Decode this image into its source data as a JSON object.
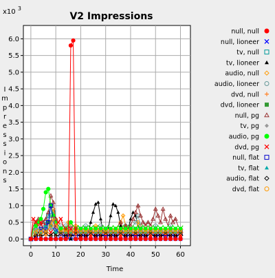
{
  "chart_data": {
    "type": "line",
    "title": "V2 Impressions",
    "xlabel": "Time",
    "ylabel": "Impressions",
    "ylabel_letters": [
      "I",
      "m",
      "p",
      "r",
      "e",
      "s",
      "s",
      "i",
      "o",
      "n",
      "s"
    ],
    "y_multiplier": "x10",
    "y_multiplier_exp": "3",
    "xlim": [
      -3,
      64
    ],
    "ylim": [
      -0.2,
      6.4
    ],
    "xticks": [
      0,
      10,
      20,
      30,
      40,
      50,
      60
    ],
    "yticks": [
      0.0,
      0.5,
      1.0,
      1.5,
      2.0,
      2.5,
      3.0,
      3.5,
      4.0,
      4.5,
      5.0,
      5.5,
      6.0
    ],
    "ytick_labels": [
      "0.0",
      "0.5",
      "1.0",
      "1.5",
      "2.0",
      "2.5",
      "3.0",
      "3.5",
      "4.0",
      "4.5",
      "5.0",
      "5.5",
      "6.0"
    ],
    "grid": true,
    "legend_position": "right",
    "x": [
      0,
      1,
      2,
      3,
      4,
      5,
      6,
      7,
      8,
      9,
      10,
      11,
      12,
      13,
      14,
      15,
      16,
      17,
      18,
      19,
      20,
      21,
      22,
      23,
      24,
      25,
      26,
      27,
      28,
      29,
      30,
      31,
      32,
      33,
      34,
      35,
      36,
      37,
      38,
      39,
      40,
      41,
      42,
      43,
      44,
      45,
      46,
      47,
      48,
      49,
      50,
      51,
      52,
      53,
      54,
      55,
      56,
      57,
      58,
      59,
      60,
      61
    ],
    "series": [
      {
        "name": "null, null",
        "color": "#ff0000",
        "marker": "circle-filled",
        "values": [
          0,
          0,
          0,
          0,
          0,
          0,
          0,
          0,
          0,
          0,
          0,
          0,
          0,
          0,
          0,
          0,
          5.8,
          5.95,
          0,
          0,
          0,
          0,
          0,
          0,
          0,
          0,
          0,
          0,
          0,
          0,
          0,
          0,
          0,
          0,
          0,
          0,
          0,
          0,
          0,
          0,
          0,
          0,
          0,
          0,
          0,
          0,
          0,
          0,
          0,
          0,
          0,
          0,
          0,
          0,
          0,
          0,
          0,
          0,
          0,
          0,
          0,
          0
        ]
      },
      {
        "name": "null, lioneer",
        "color": "#0000ff",
        "marker": "x",
        "values": [
          0,
          0,
          0,
          0,
          0,
          0,
          0,
          0,
          0,
          0,
          0,
          0,
          0,
          0,
          0,
          0,
          0,
          0,
          0,
          0,
          0,
          0,
          0,
          0,
          0,
          0,
          0,
          0,
          0,
          0,
          0,
          0,
          0,
          0,
          0,
          0,
          0,
          0,
          0,
          0,
          0,
          0,
          0,
          0,
          0,
          0,
          0,
          0,
          0,
          0,
          0,
          0,
          0,
          0,
          0,
          0,
          0,
          0,
          0,
          0,
          0,
          0
        ]
      },
      {
        "name": "tv, null",
        "color": "#009999",
        "marker": "square-open",
        "values": [
          0,
          0.1,
          0.2,
          0.3,
          0.2,
          0.3,
          0.5,
          0.7,
          1.0,
          0.8,
          0.3,
          0.2,
          0.3,
          0.2,
          0.2,
          0.3,
          0.2,
          0.3,
          0.2,
          0.2,
          0.3,
          0.2,
          0.2,
          0.3,
          0.2,
          0.2,
          0.3,
          0.2,
          0.2,
          0.2,
          0.3,
          0.2,
          0.2,
          0.3,
          0.2,
          0.2,
          0.2,
          0.3,
          0.2,
          0.2,
          0.3,
          0.2,
          0.3,
          0.4,
          0.3,
          0.2,
          0.2,
          0.3,
          0.2,
          0.2,
          0.2,
          0.3,
          0.2,
          0.2,
          0.2,
          0.3,
          0.2,
          0.2,
          0.2,
          0.3,
          0.2,
          0.2
        ]
      },
      {
        "name": "tv, lioneer",
        "color": "#000000",
        "marker": "triangle-filled",
        "values": [
          0,
          0,
          0,
          0,
          0,
          0,
          0,
          0,
          0,
          0,
          0,
          0,
          0,
          0,
          0,
          0,
          0,
          0,
          0,
          0,
          0.1,
          0.1,
          0.1,
          0.2,
          0.5,
          0.8,
          1.05,
          1.1,
          0.6,
          0.2,
          0.2,
          0.3,
          0.7,
          1.05,
          1.0,
          0.8,
          0.4,
          0.2,
          0.1,
          0.3,
          0.6,
          0.8,
          0.7,
          0.4,
          0.2,
          0.1,
          0.1,
          0.2,
          0.1,
          0.1,
          0.2,
          0.1,
          0.1,
          0.1,
          0.2,
          0.1,
          0.1,
          0.1,
          0.1,
          0.2,
          0.1,
          0.1
        ]
      },
      {
        "name": "audio, null",
        "color": "#ff9900",
        "marker": "diamond-open",
        "values": [
          0,
          0.1,
          0.2,
          0.1,
          0.2,
          0.3,
          0.2,
          0.3,
          0.5,
          0.9,
          0.6,
          0.4,
          0.3,
          0.2,
          0.3,
          0.5,
          0.4,
          0.3,
          0.4,
          0.3,
          0.2,
          0.3,
          0.2,
          0.3,
          0.2,
          0.3,
          0.4,
          0.3,
          0.2,
          0.3,
          0.2,
          0.3,
          0.2,
          0.3,
          0.2,
          0.4,
          0.5,
          0.7,
          0.4,
          0.3,
          0.2,
          0.3,
          0.2,
          0.5,
          0.4,
          0.3,
          0.2,
          0.3,
          0.2,
          0.3,
          0.2,
          0.3,
          0.2,
          0.3,
          0.2,
          0.3,
          0.2,
          0.3,
          0.2,
          0.3,
          0.2,
          0.3
        ]
      },
      {
        "name": "audio, lioneer",
        "color": "#669999",
        "marker": "circle-open",
        "values": [
          0,
          0.2,
          0.3,
          0.4,
          0.5,
          0.3,
          0.4,
          0.5,
          0.7,
          0.5,
          0.4,
          0.3,
          0.4,
          0.3,
          0.4,
          0.3,
          0.4,
          0.3,
          0.3,
          0.4,
          0.3,
          0.3,
          0.4,
          0.3,
          0.3,
          0.4,
          0.3,
          0.3,
          0.4,
          0.3,
          0.3,
          0.4,
          0.3,
          0.4,
          0.3,
          0.4,
          0.3,
          0.3,
          0.4,
          0.3,
          0.3,
          0.4,
          0.5,
          0.7,
          0.4,
          0.3,
          0.3,
          0.4,
          0.3,
          0.3,
          0.4,
          0.3,
          0.3,
          0.4,
          0.3,
          0.3,
          0.4,
          0.3,
          0.3,
          0.4,
          0.3,
          0.3
        ]
      },
      {
        "name": "dvd, null",
        "color": "#ff8833",
        "marker": "plus",
        "values": [
          0,
          0,
          0.1,
          0.2,
          0.1,
          0.2,
          0.1,
          0.2,
          0.1,
          0.2,
          0.1,
          0.2,
          0.1,
          0.2,
          0.1,
          0.2,
          0.1,
          0.2,
          0.1,
          0.2,
          0.1,
          0.2,
          0.1,
          0.2,
          0.1,
          0.2,
          0.1,
          0.2,
          0.1,
          0.2,
          0.1,
          0.2,
          0.1,
          0.2,
          0.1,
          0.2,
          0.1,
          0.2,
          0.1,
          0.2,
          0.1,
          0.2,
          0.1,
          0.2,
          0.1,
          0.2,
          0.1,
          0.2,
          0.1,
          0.2,
          0.1,
          0.2,
          0.1,
          0.2,
          0.1,
          0.2,
          0.1,
          0.2,
          0.1,
          0.2,
          0.1,
          0.2
        ]
      },
      {
        "name": "dvd, lioneer",
        "color": "#339933",
        "marker": "square-filled",
        "values": [
          0,
          0.2,
          0.3,
          0.2,
          0.3,
          0.4,
          0.3,
          0.5,
          0.4,
          0.3,
          0.2,
          0.3,
          0.2,
          0.3,
          0.2,
          0.3,
          0.2,
          0.3,
          0.2,
          0.3,
          0.2,
          0.3,
          0.2,
          0.3,
          0.2,
          0.3,
          0.2,
          0.3,
          0.2,
          0.3,
          0.2,
          0.3,
          0.2,
          0.3,
          0.2,
          0.3,
          0.2,
          0.3,
          0.2,
          0.3,
          0.2,
          0.3,
          0.2,
          0.3,
          0.2,
          0.3,
          0.2,
          0.3,
          0.2,
          0.3,
          0.2,
          0.3,
          0.2,
          0.3,
          0.2,
          0.3,
          0.2,
          0.3,
          0.2,
          0.3,
          0.2,
          0.3
        ]
      },
      {
        "name": "null, pg",
        "color": "#993333",
        "marker": "triangle-open",
        "values": [
          0,
          0.4,
          0.5,
          0.6,
          0.4,
          0.5,
          0.6,
          0.8,
          1.3,
          1.1,
          0.6,
          0.4,
          0.3,
          0.4,
          0.3,
          0.4,
          0.3,
          0.4,
          0.3,
          0.4,
          0.3,
          0.4,
          0.3,
          0.4,
          0.3,
          0.4,
          0.3,
          0.4,
          0.3,
          0.4,
          0.3,
          0.4,
          0.3,
          0.4,
          0.3,
          0.4,
          0.5,
          0.3,
          0.4,
          0.3,
          0.4,
          0.6,
          0.8,
          1.0,
          0.7,
          0.5,
          0.4,
          0.5,
          0.4,
          0.6,
          0.9,
          0.7,
          0.5,
          0.9,
          0.6,
          0.4,
          0.7,
          0.5,
          0.6,
          0.4,
          0.3,
          0.4
        ]
      },
      {
        "name": "tv, pg",
        "color": "#999999",
        "marker": "diamond-filled",
        "values": [
          0,
          0.2,
          0.3,
          0.2,
          0.3,
          0.4,
          0.3,
          0.4,
          0.3,
          0.4,
          0.3,
          0.2,
          0.3,
          0.2,
          0.3,
          0.2,
          0.3,
          0.2,
          0.3,
          0.2,
          0.3,
          0.2,
          0.3,
          0.2,
          0.3,
          0.2,
          0.3,
          0.2,
          0.3,
          0.2,
          0.3,
          0.2,
          0.3,
          0.2,
          0.3,
          0.2,
          0.3,
          0.2,
          0.3,
          0.2,
          0.3,
          0.2,
          0.3,
          0.2,
          0.3,
          0.2,
          0.3,
          0.2,
          0.3,
          0.2,
          0.3,
          0.2,
          0.3,
          0.2,
          0.3,
          0.2,
          0.3,
          0.2,
          0.3,
          0.2,
          0.3,
          0.2
        ]
      },
      {
        "name": "audio, pg",
        "color": "#00ff00",
        "marker": "circle-filled",
        "values": [
          0,
          0.3,
          0.4,
          0.5,
          0.6,
          0.9,
          1.4,
          1.5,
          1.0,
          0.7,
          0.5,
          0.4,
          0.3,
          0.4,
          0.3,
          0.4,
          0.5,
          0.4,
          0.3,
          0.4,
          0.3,
          0.4,
          0.3,
          0.4,
          0.3,
          0.4,
          0.3,
          0.4,
          0.3,
          0.4,
          0.3,
          0.4,
          0.3,
          0.4,
          0.3,
          0.4,
          0.3,
          0.4,
          0.3,
          0.4,
          0.3,
          0.4,
          0.3,
          0.4,
          0.3,
          0.4,
          0.3,
          0.4,
          0.3,
          0.4,
          0.3,
          0.4,
          0.3,
          0.4,
          0.3,
          0.4,
          0.3,
          0.4,
          0.3,
          0.4,
          0.3,
          0.4
        ]
      },
      {
        "name": "dvd, pg",
        "color": "#ff0000",
        "marker": "x",
        "values": [
          0,
          0.6,
          0.5,
          0.4,
          0.5,
          0.3,
          0.4,
          0.3,
          0.2,
          0.3,
          0.4,
          0.5,
          0.6,
          0.4,
          0.3,
          0.2,
          0.3,
          0.2,
          0.3,
          0.2,
          0.1,
          0.2,
          0.1,
          0.2,
          0.1,
          0.2,
          0.1,
          0.2,
          0.1,
          0.2,
          0.1,
          0.2,
          0.1,
          0.2,
          0.1,
          0.2,
          0.1,
          0.2,
          0.1,
          0.2,
          0.1,
          0.2,
          0.1,
          0.2,
          0.1,
          0.2,
          0.1,
          0.2,
          0.1,
          0.2,
          0.1,
          0.2,
          0.1,
          0.2,
          0.1,
          0.2,
          0.1,
          0.2,
          0.1,
          0.2,
          0.1,
          0.2
        ]
      },
      {
        "name": "null, flat",
        "color": "#0000cc",
        "marker": "square-open",
        "values": [
          0,
          0,
          0.1,
          0.2,
          0.3,
          0.2,
          0.3,
          0.5,
          1.0,
          0.6,
          0.3,
          0.2,
          0.1,
          0.2,
          0.1,
          0.1,
          0.2,
          0.1,
          0.1,
          0.1,
          0.2,
          0.1,
          0.1,
          0.1,
          0.2,
          0.1,
          0.1,
          0.1,
          0.2,
          0.1,
          0.1,
          0.1,
          0.2,
          0.1,
          0.1,
          0.1,
          0.2,
          0.1,
          0.1,
          0.1,
          0.2,
          0.1,
          0.1,
          0.1,
          0.2,
          0.1,
          0.1,
          0.1,
          0.2,
          0.1,
          0.1,
          0.1,
          0.2,
          0.1,
          0.1,
          0.1,
          0.2,
          0.1,
          0.1,
          0.1,
          0.2,
          0.1
        ]
      },
      {
        "name": "tv, flat",
        "color": "#00aaaa",
        "marker": "triangle-filled",
        "values": [
          0,
          0.1,
          0.2,
          0.3,
          0.2,
          0.3,
          0.4,
          0.3,
          0.4,
          0.3,
          0.2,
          0.3,
          0.2,
          0.3,
          0.2,
          0.3,
          0.2,
          0.3,
          0.2,
          0.3,
          0.2,
          0.3,
          0.2,
          0.3,
          0.2,
          0.3,
          0.2,
          0.3,
          0.2,
          0.3,
          0.2,
          0.3,
          0.2,
          0.3,
          0.2,
          0.3,
          0.2,
          0.3,
          0.2,
          0.3,
          0.2,
          0.3,
          0.2,
          0.3,
          0.2,
          0.3,
          0.2,
          0.3,
          0.2,
          0.3,
          0.2,
          0.3,
          0.2,
          0.3,
          0.2,
          0.3,
          0.2,
          0.3,
          0.2,
          0.3,
          0.2,
          0.3
        ]
      },
      {
        "name": "audio, flat",
        "color": "#000000",
        "marker": "diamond-open",
        "values": [
          0,
          0,
          0.1,
          0.2,
          0.1,
          0.1,
          0.2,
          0.1,
          0.1,
          0.2,
          0.1,
          0.1,
          0.2,
          0.1,
          0.1,
          0.2,
          0.1,
          0.1,
          0.2,
          0.1,
          0.1,
          0.2,
          0.1,
          0.1,
          0.2,
          0.1,
          0.1,
          0.2,
          0.1,
          0.1,
          0.2,
          0.1,
          0.1,
          0.2,
          0.1,
          0.1,
          0.2,
          0.1,
          0.1,
          0.2,
          0.1,
          0.1,
          0.2,
          0.1,
          0.1,
          0.2,
          0.1,
          0.1,
          0.2,
          0.1,
          0.1,
          0.2,
          0.1,
          0.1,
          0.2,
          0.1,
          0.1,
          0.2,
          0.1,
          0.1,
          0.2,
          0.1
        ]
      },
      {
        "name": "dvd, flat",
        "color": "#ff9900",
        "marker": "circle-open",
        "values": [
          0,
          0.1,
          0.2,
          0.3,
          0.2,
          0.3,
          0.2,
          0.3,
          0.4,
          0.6,
          0.4,
          0.3,
          0.2,
          0.3,
          0.2,
          0.3,
          0.2,
          0.3,
          0.2,
          0.3,
          0.2,
          0.3,
          0.2,
          0.3,
          0.2,
          0.3,
          0.2,
          0.3,
          0.2,
          0.3,
          0.2,
          0.3,
          0.2,
          0.3,
          0.2,
          0.3,
          0.2,
          0.3,
          0.2,
          0.3,
          0.2,
          0.3,
          0.2,
          0.3,
          0.2,
          0.3,
          0.2,
          0.3,
          0.2,
          0.3,
          0.2,
          0.3,
          0.2,
          0.3,
          0.2,
          0.3,
          0.2,
          0.3,
          0.2,
          0.3,
          0.2,
          0.3
        ]
      }
    ]
  }
}
